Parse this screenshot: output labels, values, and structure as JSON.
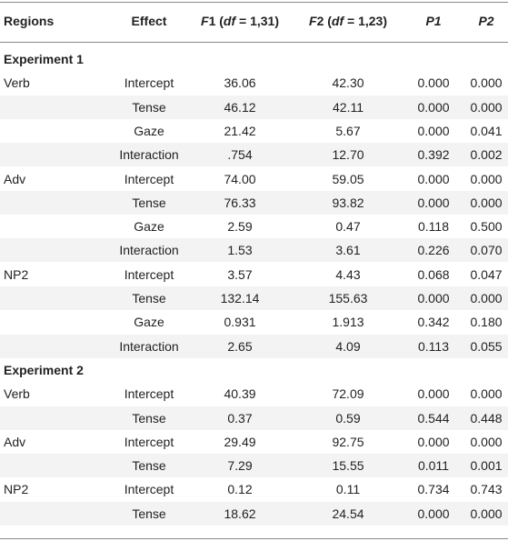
{
  "header": {
    "regions": "Regions",
    "effect": "Effect",
    "f1": "F1 (df = 1,31)",
    "f2": "F2 (df = 1,23)",
    "p1": "P1",
    "p2": "P2"
  },
  "experiments": [
    {
      "title": "Experiment 1",
      "rows": [
        {
          "region": "Verb",
          "effect": "Intercept",
          "f1": "36.06",
          "f2": "42.30",
          "p1": "0.000",
          "p2": "0.000"
        },
        {
          "region": "",
          "effect": "Tense",
          "f1": "46.12",
          "f2": "42.11",
          "p1": "0.000",
          "p2": "0.000"
        },
        {
          "region": "",
          "effect": "Gaze",
          "f1": "21.42",
          "f2": "5.67",
          "p1": "0.000",
          "p2": "0.041"
        },
        {
          "region": "",
          "effect": "Interaction",
          "f1": ".754",
          "f2": "12.70",
          "p1": "0.392",
          "p2": "0.002"
        },
        {
          "region": "Adv",
          "effect": "Intercept",
          "f1": "74.00",
          "f2": "59.05",
          "p1": "0.000",
          "p2": "0.000"
        },
        {
          "region": "",
          "effect": "Tense",
          "f1": "76.33",
          "f2": "93.82",
          "p1": "0.000",
          "p2": "0.000"
        },
        {
          "region": "",
          "effect": "Gaze",
          "f1": "2.59",
          "f2": "0.47",
          "p1": "0.118",
          "p2": "0.500"
        },
        {
          "region": "",
          "effect": "Interaction",
          "f1": "1.53",
          "f2": "3.61",
          "p1": "0.226",
          "p2": "0.070"
        },
        {
          "region": "NP2",
          "effect": "Intercept",
          "f1": "3.57",
          "f2": "4.43",
          "p1": "0.068",
          "p2": "0.047"
        },
        {
          "region": "",
          "effect": "Tense",
          "f1": "132.14",
          "f2": "155.63",
          "p1": "0.000",
          "p2": "0.000"
        },
        {
          "region": "",
          "effect": "Gaze",
          "f1": "0.931",
          "f2": "1.913",
          "p1": "0.342",
          "p2": "0.180"
        },
        {
          "region": "",
          "effect": "Interaction",
          "f1": "2.65",
          "f2": "4.09",
          "p1": "0.113",
          "p2": "0.055"
        }
      ]
    },
    {
      "title": "Experiment 2",
      "rows": [
        {
          "region": "Verb",
          "effect": "Intercept",
          "f1": "40.39",
          "f2": "72.09",
          "p1": "0.000",
          "p2": "0.000"
        },
        {
          "region": "",
          "effect": "Tense",
          "f1": "0.37",
          "f2": "0.59",
          "p1": "0.544",
          "p2": "0.448"
        },
        {
          "region": "Adv",
          "effect": "Intercept",
          "f1": "29.49",
          "f2": "92.75",
          "p1": "0.000",
          "p2": "0.000"
        },
        {
          "region": "",
          "effect": "Tense",
          "f1": "7.29",
          "f2": "15.55",
          "p1": "0.011",
          "p2": "0.001"
        },
        {
          "region": "NP2",
          "effect": "Intercept",
          "f1": "0.12",
          "f2": "0.11",
          "p1": "0.734",
          "p2": "0.743"
        },
        {
          "region": "",
          "effect": "Tense",
          "f1": "18.62",
          "f2": "24.54",
          "p1": "0.000",
          "p2": "0.000"
        }
      ]
    }
  ]
}
